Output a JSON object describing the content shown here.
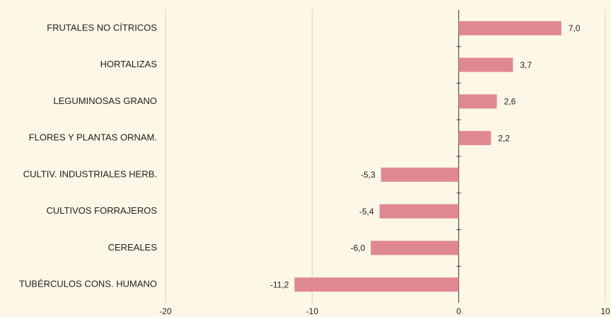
{
  "chart_data": {
    "type": "barh",
    "categories": [
      "FRUTALES NO CÍTRICOS",
      "HORTALIZAS",
      "LEGUMINOSAS GRANO",
      "FLORES Y PLANTAS ORNAM.",
      "CULTIV. INDUSTRIALES HERB.",
      "CULTIVOS FORRAJEROS",
      "CEREALES",
      "TUBÉRCULOS CONS. HUMANO"
    ],
    "values": [
      7.0,
      3.7,
      2.6,
      2.2,
      -5.3,
      -5.4,
      -6.0,
      -11.2
    ],
    "value_labels": [
      "7,0",
      "3,7",
      "2,6",
      "2,2",
      "-5,3",
      "-5,4",
      "-6,0",
      "-11,2"
    ],
    "color": "#e08890",
    "xlim": [
      -20,
      10
    ],
    "xticks": [
      -20,
      -10,
      0,
      10
    ],
    "grid": true
  }
}
